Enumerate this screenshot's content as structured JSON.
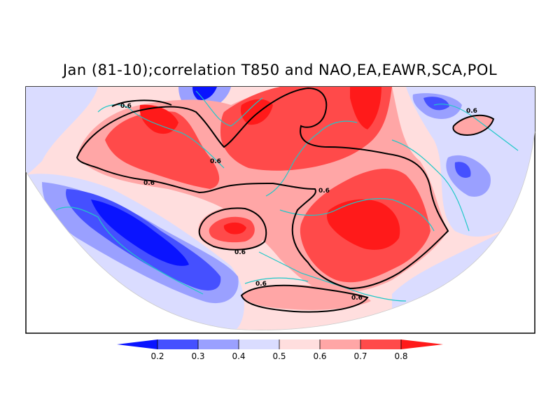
{
  "title": "Jan (81-10);correlation T850 and NAO,EA,EAWR,SCA,POL",
  "colors": {
    "c0": "#0a14ff",
    "c1": "#4550ff",
    "c2": "#9aa0ff",
    "c3": "#dadcff",
    "c4": "#ffdede",
    "c5": "#ffa6a6",
    "c6": "#ff4a4a",
    "c7": "#ff1a1a",
    "contour": "#000000",
    "coast": "#20c8c8"
  },
  "colorbar": {
    "labels": [
      "0.2",
      "0.3",
      "0.4",
      "0.5",
      "0.6",
      "0.7",
      "0.8"
    ]
  },
  "contour_level_label": "0.6"
}
